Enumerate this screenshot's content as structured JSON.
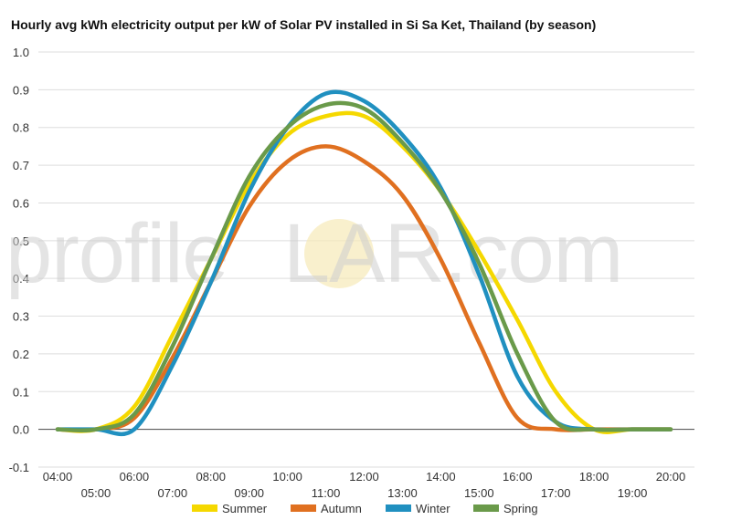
{
  "chart_data": {
    "type": "line",
    "title": "Hourly avg kWh electricity output per kW of Solar PV installed in Si Sa Ket, Thailand (by season)",
    "xlabel": "",
    "ylabel": "",
    "ylim": [
      -0.1,
      1.0
    ],
    "yticks": [
      "1.0",
      "0.9",
      "0.8",
      "0.7",
      "0.6",
      "0.5",
      "0.4",
      "0.3",
      "0.2",
      "0.1",
      "0.0",
      "-0.1"
    ],
    "ytick_values": [
      1.0,
      0.9,
      0.8,
      0.7,
      0.6,
      0.5,
      0.4,
      0.3,
      0.2,
      0.1,
      0.0,
      -0.1
    ],
    "grid": true,
    "legend_position": "bottom",
    "categories": [
      "04:00",
      "05:00",
      "06:00",
      "07:00",
      "08:00",
      "09:00",
      "10:00",
      "11:00",
      "12:00",
      "13:00",
      "14:00",
      "15:00",
      "16:00",
      "17:00",
      "18:00",
      "19:00",
      "20:00"
    ],
    "series": [
      {
        "name": "Summer",
        "color": "#f5d800",
        "values": [
          0.0,
          0.0,
          0.06,
          0.25,
          0.45,
          0.65,
          0.78,
          0.83,
          0.83,
          0.75,
          0.63,
          0.47,
          0.29,
          0.1,
          0.0,
          0.0,
          0.0
        ]
      },
      {
        "name": "Autumn",
        "color": "#e07020",
        "values": [
          0.0,
          0.0,
          0.03,
          0.19,
          0.39,
          0.59,
          0.71,
          0.75,
          0.71,
          0.62,
          0.45,
          0.23,
          0.03,
          0.0,
          0.0,
          0.0,
          0.0
        ]
      },
      {
        "name": "Winter",
        "color": "#2090c0",
        "values": [
          0.0,
          0.0,
          0.0,
          0.17,
          0.39,
          0.63,
          0.8,
          0.89,
          0.87,
          0.78,
          0.64,
          0.41,
          0.14,
          0.02,
          0.0,
          0.0,
          0.0
        ]
      },
      {
        "name": "Spring",
        "color": "#6a9a4a",
        "values": [
          0.0,
          0.0,
          0.04,
          0.22,
          0.45,
          0.67,
          0.8,
          0.86,
          0.85,
          0.76,
          0.63,
          0.44,
          0.2,
          0.02,
          0.0,
          0.0,
          0.0
        ]
      }
    ]
  },
  "watermark": {
    "prefix": "profile",
    "s": "S",
    "suffix": "LAR.com"
  }
}
